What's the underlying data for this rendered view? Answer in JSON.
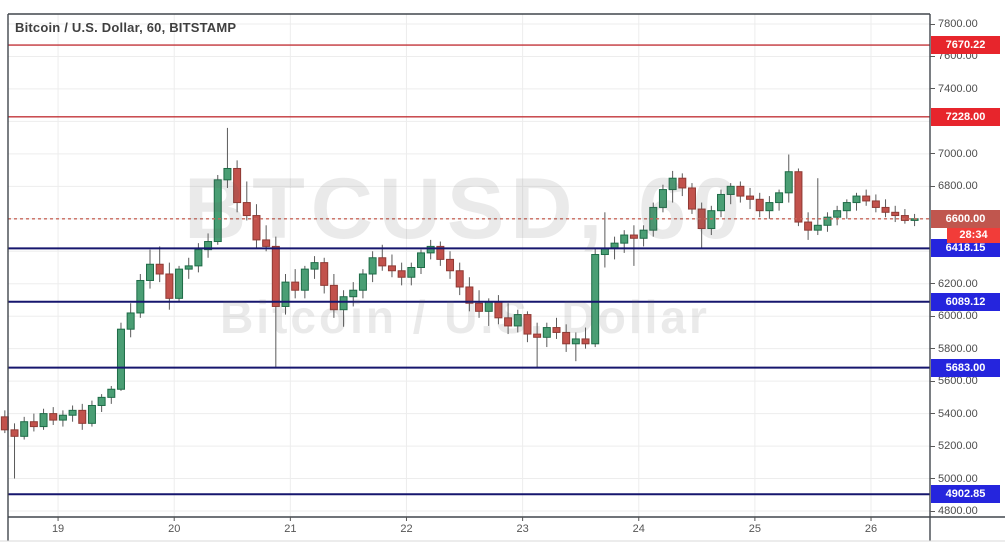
{
  "header": {
    "title": "Bitcoin / U.S. Dollar, 60, BITSTAMP"
  },
  "watermark": {
    "line1": "BTCUSD, 60",
    "line2": "Bitcoin / U.S. Dollar"
  },
  "y_axis": {
    "visible_labels": [
      "7800.00",
      "7600.00",
      "7400.00",
      "7000.00",
      "6800.00",
      "6200.00",
      "6000.00",
      "5800.00",
      "5600.00",
      "5400.00",
      "5200.00",
      "5000.00",
      "4800.00"
    ],
    "visible_label_prices": [
      7800,
      7600,
      7400,
      7000,
      6800,
      6200,
      6000,
      5800,
      5600,
      5400,
      5200,
      5000,
      4800
    ]
  },
  "x_axis": {
    "tick_labels": [
      "19",
      "20",
      "21",
      "22",
      "23",
      "24",
      "25",
      "26"
    ],
    "tick_candle_index": [
      6,
      18,
      30,
      42,
      54,
      66,
      78,
      90
    ]
  },
  "chart_data": {
    "type": "candlestick",
    "title": "Bitcoin / U.S. Dollar, 60, BITSTAMP",
    "symbol": "BTCUSD",
    "exchange": "BITSTAMP",
    "interval_minutes": 60,
    "x_categories_days": [
      "19",
      "20",
      "21",
      "22",
      "23",
      "24",
      "25",
      "26"
    ],
    "ylim": [
      4763,
      7861
    ],
    "y_gridline_step": 200,
    "grid": true,
    "current_price": "6600.00",
    "bar_countdown": "28:34",
    "levels": [
      {
        "price": 7670.22,
        "label": "7670.22",
        "kind": "resistance",
        "line_color": "#c23439",
        "badge_color": "#e7252c",
        "style": "solid"
      },
      {
        "price": 7228.0,
        "label": "7228.00",
        "kind": "resistance",
        "line_color": "#c23439",
        "badge_color": "#e7252c",
        "style": "solid"
      },
      {
        "price": 6600.0,
        "label": "6600.00",
        "kind": "last-price",
        "line_color": "#c9685c",
        "badge_color": "#c0564e",
        "style": "dashed"
      },
      {
        "price": 6418.15,
        "label": "6418.15",
        "kind": "support",
        "line_color": "#16166e",
        "badge_color": "#2525dd",
        "style": "solid"
      },
      {
        "price": 6089.12,
        "label": "6089.12",
        "kind": "support",
        "line_color": "#16166e",
        "badge_color": "#2525dd",
        "style": "solid"
      },
      {
        "price": 5683.0,
        "label": "5683.00",
        "kind": "support",
        "line_color": "#16166e",
        "badge_color": "#2525dd",
        "style": "solid"
      },
      {
        "price": 4902.85,
        "label": "4902.85",
        "kind": "support",
        "line_color": "#16166e",
        "badge_color": "#2525dd",
        "style": "solid"
      }
    ],
    "candles_ohlc": [
      [
        5380,
        5420,
        5280,
        5300
      ],
      [
        5300,
        5340,
        5000,
        5260
      ],
      [
        5260,
        5380,
        5240,
        5350
      ],
      [
        5350,
        5400,
        5290,
        5320
      ],
      [
        5320,
        5430,
        5300,
        5400
      ],
      [
        5400,
        5440,
        5330,
        5360
      ],
      [
        5360,
        5420,
        5320,
        5390
      ],
      [
        5390,
        5450,
        5350,
        5420
      ],
      [
        5420,
        5460,
        5300,
        5340
      ],
      [
        5340,
        5480,
        5320,
        5450
      ],
      [
        5450,
        5520,
        5410,
        5500
      ],
      [
        5500,
        5570,
        5460,
        5550
      ],
      [
        5550,
        5960,
        5540,
        5920
      ],
      [
        5920,
        6080,
        5870,
        6020
      ],
      [
        6020,
        6260,
        5990,
        6220
      ],
      [
        6220,
        6410,
        6170,
        6320
      ],
      [
        6320,
        6430,
        6210,
        6260
      ],
      [
        6260,
        6330,
        6040,
        6110
      ],
      [
        6110,
        6310,
        6090,
        6290
      ],
      [
        6290,
        6360,
        6230,
        6310
      ],
      [
        6310,
        6450,
        6270,
        6410
      ],
      [
        6410,
        6510,
        6360,
        6460
      ],
      [
        6460,
        6870,
        6440,
        6840
      ],
      [
        6840,
        7160,
        6790,
        6910
      ],
      [
        6910,
        6960,
        6640,
        6700
      ],
      [
        6700,
        6830,
        6590,
        6620
      ],
      [
        6620,
        6690,
        6420,
        6470
      ],
      [
        6470,
        6560,
        6400,
        6430
      ],
      [
        6430,
        6490,
        5683,
        6060
      ],
      [
        6060,
        6260,
        6010,
        6210
      ],
      [
        6210,
        6290,
        6110,
        6160
      ],
      [
        6160,
        6310,
        6110,
        6290
      ],
      [
        6290,
        6370,
        6230,
        6330
      ],
      [
        6330,
        6360,
        6140,
        6190
      ],
      [
        6190,
        6260,
        5990,
        6040
      ],
      [
        6040,
        6160,
        5935,
        6120
      ],
      [
        6120,
        6210,
        6060,
        6160
      ],
      [
        6160,
        6290,
        6110,
        6260
      ],
      [
        6260,
        6400,
        6210,
        6360
      ],
      [
        6360,
        6440,
        6280,
        6310
      ],
      [
        6310,
        6380,
        6240,
        6280
      ],
      [
        6280,
        6330,
        6190,
        6240
      ],
      [
        6240,
        6330,
        6190,
        6300
      ],
      [
        6300,
        6410,
        6260,
        6390
      ],
      [
        6390,
        6470,
        6350,
        6430
      ],
      [
        6430,
        6460,
        6310,
        6350
      ],
      [
        6350,
        6400,
        6230,
        6280
      ],
      [
        6280,
        6330,
        6130,
        6180
      ],
      [
        6180,
        6240,
        6030,
        6080
      ],
      [
        6080,
        6160,
        5990,
        6030
      ],
      [
        6030,
        6110,
        5940,
        6090
      ],
      [
        6090,
        6130,
        5950,
        5990
      ],
      [
        5990,
        6080,
        5890,
        5940
      ],
      [
        5940,
        6040,
        5900,
        6010
      ],
      [
        6010,
        6030,
        5840,
        5890
      ],
      [
        5890,
        5960,
        5683,
        5870
      ],
      [
        5870,
        5960,
        5810,
        5930
      ],
      [
        5930,
        5990,
        5860,
        5900
      ],
      [
        5900,
        5950,
        5780,
        5830
      ],
      [
        5830,
        5900,
        5723,
        5860
      ],
      [
        5860,
        5930,
        5800,
        5830
      ],
      [
        5830,
        6420,
        5810,
        6380
      ],
      [
        6380,
        6640,
        6300,
        6420
      ],
      [
        6420,
        6490,
        6350,
        6450
      ],
      [
        6450,
        6530,
        6390,
        6500
      ],
      [
        6500,
        6560,
        6310,
        6480
      ],
      [
        6480,
        6560,
        6430,
        6530
      ],
      [
        6530,
        6700,
        6490,
        6670
      ],
      [
        6670,
        6810,
        6640,
        6780
      ],
      [
        6780,
        6895,
        6700,
        6850
      ],
      [
        6850,
        6880,
        6740,
        6790
      ],
      [
        6790,
        6820,
        6630,
        6660
      ],
      [
        6660,
        6700,
        6420,
        6540
      ],
      [
        6540,
        6680,
        6500,
        6650
      ],
      [
        6650,
        6780,
        6610,
        6750
      ],
      [
        6750,
        6820,
        6690,
        6800
      ],
      [
        6800,
        6830,
        6700,
        6740
      ],
      [
        6740,
        6790,
        6660,
        6720
      ],
      [
        6720,
        6760,
        6610,
        6650
      ],
      [
        6650,
        6740,
        6600,
        6700
      ],
      [
        6700,
        6780,
        6650,
        6760
      ],
      [
        6760,
        6996,
        6700,
        6890
      ],
      [
        6890,
        6910,
        6555,
        6580
      ],
      [
        6580,
        6640,
        6470,
        6530
      ],
      [
        6530,
        6850,
        6500,
        6560
      ],
      [
        6560,
        6640,
        6520,
        6610
      ],
      [
        6610,
        6680,
        6560,
        6650
      ],
      [
        6650,
        6720,
        6600,
        6700
      ],
      [
        6700,
        6760,
        6650,
        6740
      ],
      [
        6740,
        6780,
        6680,
        6710
      ],
      [
        6710,
        6750,
        6640,
        6670
      ],
      [
        6670,
        6720,
        6610,
        6640
      ],
      [
        6640,
        6680,
        6580,
        6620
      ],
      [
        6620,
        6660,
        6570,
        6590
      ],
      [
        6590,
        6630,
        6555,
        6600
      ]
    ]
  },
  "colors": {
    "up_fill": "#4a9e74",
    "up_border": "#1e6b47",
    "down_fill": "#c2524c",
    "down_border": "#8f3a34",
    "wick": "#5a5a5a",
    "grid": "#ededed",
    "pane_border": "#41464d",
    "axis_text": "#4c4c4c",
    "countdown_badge": "#f23c39",
    "watermark": "rgba(90,90,90,0.13)"
  }
}
